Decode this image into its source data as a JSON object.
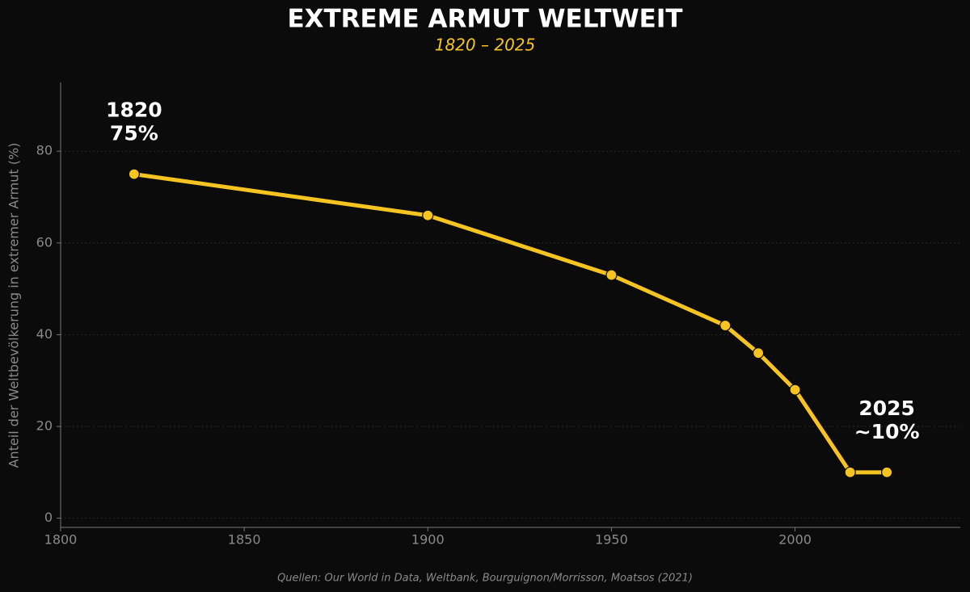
{
  "chart_data": {
    "type": "line",
    "title": "EXTREME ARMUT WELTWEIT",
    "subtitle": "1820 – 2025",
    "y_label": "Anteil der Weltbevölkerung in extremer Armut (%)",
    "source": "Quellen: Our World in Data, Weltbank, Bourguignon/Morrisson, Moatsos (2021)",
    "x": [
      1820,
      1900,
      1950,
      1981,
      1990,
      2000,
      2015,
      2025
    ],
    "series": [
      {
        "name": "Extreme Armut",
        "color": "#f5c421",
        "values": [
          75,
          66,
          53,
          42,
          36,
          28,
          10,
          10
        ]
      }
    ],
    "xlim": [
      1800,
      2045
    ],
    "xticks": [
      1800,
      1850,
      1900,
      1950,
      2000
    ],
    "ylim": [
      -2,
      95
    ],
    "yticks": [
      0,
      20,
      40,
      60,
      80
    ],
    "grid": true,
    "annotations": [
      {
        "lines": [
          "1820",
          "75%"
        ]
      },
      {
        "lines": [
          "2025",
          "~10%"
        ]
      }
    ]
  }
}
